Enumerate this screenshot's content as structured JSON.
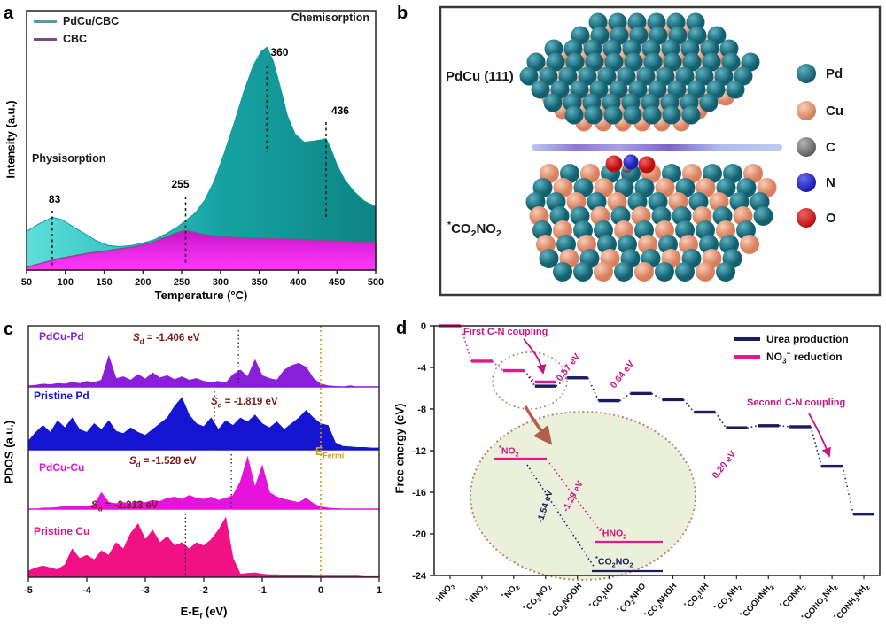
{
  "chart_data": [
    {
      "id": "a",
      "panel_label": "a",
      "type": "area",
      "xlabel": "Temperature (°C)",
      "ylabel": "Intensity (a.u.)",
      "xlim": [
        50,
        500
      ],
      "xticks": [
        50,
        100,
        150,
        200,
        250,
        300,
        350,
        400,
        450,
        500
      ],
      "legend": [
        {
          "label": "PdCu/CBC",
          "color": "#4f9ea0"
        },
        {
          "label": "CBC",
          "color": "#7a4d80"
        }
      ],
      "annotations": {
        "chemisorption": "Chemisorption",
        "physisorption": "Physisorption"
      },
      "peaks": [
        {
          "x": 83,
          "label": "83"
        },
        {
          "x": 255,
          "label": "255"
        },
        {
          "x": 360,
          "label": "360"
        },
        {
          "x": 436,
          "label": "436"
        }
      ],
      "series": [
        {
          "name": "PdCu/CBC",
          "fill_from": "#5ededa",
          "fill_to": "#0d8484",
          "points": [
            [
              50,
              0.165
            ],
            [
              65,
              0.195
            ],
            [
              83,
              0.225
            ],
            [
              95,
              0.215
            ],
            [
              110,
              0.185
            ],
            [
              125,
              0.155
            ],
            [
              140,
              0.125
            ],
            [
              155,
              0.105
            ],
            [
              170,
              0.1
            ],
            [
              185,
              0.105
            ],
            [
              200,
              0.115
            ],
            [
              215,
              0.13
            ],
            [
              230,
              0.155
            ],
            [
              245,
              0.185
            ],
            [
              255,
              0.21
            ],
            [
              268,
              0.245
            ],
            [
              280,
              0.3
            ],
            [
              292,
              0.38
            ],
            [
              305,
              0.5
            ],
            [
              318,
              0.63
            ],
            [
              330,
              0.76
            ],
            [
              342,
              0.87
            ],
            [
              352,
              0.93
            ],
            [
              360,
              0.95
            ],
            [
              368,
              0.89
            ],
            [
              377,
              0.78
            ],
            [
              386,
              0.66
            ],
            [
              396,
              0.58
            ],
            [
              408,
              0.545
            ],
            [
              420,
              0.55
            ],
            [
              430,
              0.555
            ],
            [
              436,
              0.56
            ],
            [
              442,
              0.52
            ],
            [
              450,
              0.45
            ],
            [
              460,
              0.385
            ],
            [
              472,
              0.335
            ],
            [
              485,
              0.295
            ],
            [
              500,
              0.27
            ]
          ]
        },
        {
          "name": "CBC",
          "fill_from": "#c913c9",
          "fill_to": "#ff3aff",
          "edge": "#8a4b8f",
          "points": [
            [
              50,
              0.012
            ],
            [
              70,
              0.03
            ],
            [
              90,
              0.048
            ],
            [
              110,
              0.06
            ],
            [
              130,
              0.072
            ],
            [
              150,
              0.08
            ],
            [
              170,
              0.09
            ],
            [
              190,
              0.1
            ],
            [
              210,
              0.115
            ],
            [
              230,
              0.14
            ],
            [
              245,
              0.16
            ],
            [
              255,
              0.168
            ],
            [
              265,
              0.162
            ],
            [
              280,
              0.15
            ],
            [
              300,
              0.142
            ],
            [
              320,
              0.138
            ],
            [
              340,
              0.136
            ],
            [
              360,
              0.134
            ],
            [
              380,
              0.132
            ],
            [
              400,
              0.13
            ],
            [
              420,
              0.127
            ],
            [
              440,
              0.124
            ],
            [
              460,
              0.122
            ],
            [
              480,
              0.12
            ],
            [
              500,
              0.118
            ]
          ]
        }
      ]
    },
    {
      "id": "c",
      "panel_label": "c",
      "type": "area",
      "subtype": "pdos-stack",
      "xlabel_segments": [
        {
          "t": "E-E"
        },
        {
          "sub": "f"
        },
        {
          "t": " (eV)"
        }
      ],
      "ylabel": "PDOS (a.u.)",
      "xlim": [
        -5,
        1
      ],
      "xticks": [
        -5,
        -4,
        -3,
        -2,
        -1,
        0,
        1
      ],
      "sd_sym": "S",
      "sd_sub": "d",
      "fermi_segments": [
        {
          "t": "E"
        },
        {
          "sub": "Fermi"
        }
      ],
      "fermi_color": "#cf9c12",
      "x_start": -5,
      "x_step": 0.125,
      "traces": [
        {
          "name": "PdCu-Pd",
          "color": "#8a1fd9",
          "sd_value": "= -1.406 eV",
          "band_center": -1.406,
          "values": [
            0.02,
            0.03,
            0.05,
            0.04,
            0.06,
            0.05,
            0.08,
            0.06,
            0.1,
            0.08,
            0.12,
            0.55,
            0.15,
            0.18,
            0.12,
            0.22,
            0.14,
            0.25,
            0.16,
            0.2,
            0.13,
            0.18,
            0.12,
            0.15,
            0.1,
            0.08,
            0.1,
            0.07,
            0.22,
            0.3,
            0.18,
            0.48,
            0.2,
            0.15,
            0.12,
            0.3,
            0.38,
            0.42,
            0.35,
            0.15,
            0.05,
            0.02,
            0.01,
            0,
            0.02,
            0,
            0,
            0,
            0
          ]
        },
        {
          "name": "Pristine Pd",
          "color": "#1414d2",
          "sd_value": "= -1.819 eV",
          "band_center": -1.819,
          "values": [
            0.15,
            0.3,
            0.42,
            0.3,
            0.5,
            0.38,
            0.55,
            0.35,
            0.3,
            0.45,
            0.35,
            0.5,
            0.32,
            0.28,
            0.38,
            0.3,
            0.25,
            0.35,
            0.45,
            0.55,
            0.75,
            0.9,
            0.6,
            0.45,
            0.4,
            0.55,
            0.35,
            0.5,
            0.42,
            0.55,
            0.48,
            0.6,
            0.45,
            0.38,
            0.48,
            0.35,
            0.45,
            0.55,
            0.68,
            0.55,
            0.45,
            0.42,
            0.12,
            0.06,
            0.05,
            0.04,
            0.04,
            0.03,
            0.03
          ]
        },
        {
          "name": "PdCu-Cu",
          "color": "#e613dc",
          "sd_value": "= -1.528 eV",
          "band_center": -1.528,
          "values": [
            0,
            0,
            0.02,
            0.02,
            0.03,
            0.05,
            0.04,
            0.06,
            0.05,
            0.08,
            0.3,
            0.12,
            0.1,
            0.12,
            0.1,
            0.14,
            0.12,
            0.16,
            0.14,
            0.2,
            0.22,
            0.18,
            0.25,
            0.2,
            0.18,
            0.22,
            0.16,
            0.2,
            0.25,
            0.5,
            0.95,
            0.4,
            0.8,
            0.3,
            0.22,
            0.18,
            0.15,
            0.12,
            0.2,
            0.1,
            0.04,
            0.02,
            0.01,
            0,
            0,
            0,
            0,
            0,
            0
          ]
        },
        {
          "name": "Pristine Cu",
          "color": "#f01285",
          "sd_value": "= -2.313 eV",
          "band_center": -2.313,
          "values": [
            0.1,
            0.15,
            0.18,
            0.15,
            0.12,
            0.2,
            0.45,
            0.3,
            0.35,
            0.28,
            0.42,
            0.35,
            0.55,
            0.45,
            0.7,
            0.85,
            0.6,
            0.75,
            0.55,
            0.65,
            0.5,
            0.55,
            0.45,
            0.55,
            0.5,
            0.6,
            0.75,
            0.95,
            0.3,
            0.05,
            0.06,
            0.07,
            0.05,
            0.04,
            0.04,
            0.03,
            0.03,
            0.03,
            0.03,
            0.02,
            0.02,
            0.02,
            0.02,
            0.02,
            0.02,
            0.02,
            0.01,
            0.01,
            0.01
          ]
        }
      ]
    },
    {
      "id": "d",
      "panel_label": "d",
      "type": "step",
      "ylabel": "Free energy (eV)",
      "ylim": [
        -24,
        0
      ],
      "yticks": [
        0,
        -4,
        -8,
        -12,
        -16,
        -20,
        -24
      ],
      "series_colors": {
        "urea": "#1b1b5f",
        "no3": "#e01a8c"
      },
      "legend": [
        {
          "segments": [
            {
              "t": "Urea production"
            }
          ],
          "color": "#1b1b5f"
        },
        {
          "segments": [
            {
              "t": "NO"
            },
            {
              "sub": "3"
            },
            {
              "sup": "−"
            },
            {
              "t": " reduction"
            }
          ],
          "color": "#e01a8c"
        }
      ],
      "steps": [
        {
          "segments": [
            {
              "t": "HNO"
            },
            {
              "sub": "3"
            }
          ],
          "series": "no3",
          "energy": 0
        },
        {
          "segments": [
            {
              "sup": "*"
            },
            {
              "t": "HNO"
            },
            {
              "sub": "3"
            }
          ],
          "series": "no3",
          "energy": -3.4
        },
        {
          "segments": [
            {
              "sup": "*"
            },
            {
              "t": "NO"
            },
            {
              "sub": "2"
            }
          ],
          "series": "no3",
          "energy": -4.3
        },
        {
          "segments": [
            {
              "sup": "*"
            },
            {
              "t": "CO"
            },
            {
              "sub": "2"
            },
            {
              "t": "NO"
            },
            {
              "sub": "2"
            }
          ],
          "series": "urea",
          "energy": -5.8,
          "alt_energy": -5.4
        },
        {
          "segments": [
            {
              "sup": "*"
            },
            {
              "t": "CO"
            },
            {
              "sub": "2"
            },
            {
              "t": "NOOH"
            }
          ],
          "series": "urea",
          "energy": -5.0
        },
        {
          "segments": [
            {
              "sup": "*"
            },
            {
              "t": "CO"
            },
            {
              "sub": "2"
            },
            {
              "t": "NO"
            }
          ],
          "series": "urea",
          "energy": -7.2
        },
        {
          "segments": [
            {
              "sup": "*"
            },
            {
              "t": "CO"
            },
            {
              "sub": "2"
            },
            {
              "t": "NHO"
            }
          ],
          "series": "urea",
          "energy": -6.5
        },
        {
          "segments": [
            {
              "sup": "*"
            },
            {
              "t": "CO"
            },
            {
              "sub": "2"
            },
            {
              "t": "NHOH"
            }
          ],
          "series": "urea",
          "energy": -7.1
        },
        {
          "segments": [
            {
              "sup": "*"
            },
            {
              "t": "CO"
            },
            {
              "sub": "2"
            },
            {
              "t": "NH"
            }
          ],
          "series": "urea",
          "energy": -8.3
        },
        {
          "segments": [
            {
              "sup": "*"
            },
            {
              "t": "CO"
            },
            {
              "sub": "2"
            },
            {
              "t": "NH"
            },
            {
              "sub": "2"
            }
          ],
          "series": "urea",
          "energy": -9.8
        },
        {
          "segments": [
            {
              "sup": "*"
            },
            {
              "t": "COOHNH"
            },
            {
              "sub": "2"
            }
          ],
          "series": "urea",
          "energy": -9.6
        },
        {
          "segments": [
            {
              "sup": "*"
            },
            {
              "t": "CONH"
            },
            {
              "sub": "2"
            }
          ],
          "series": "urea",
          "energy": -9.7
        },
        {
          "segments": [
            {
              "sup": "*"
            },
            {
              "t": "CONO"
            },
            {
              "sub": "2"
            },
            {
              "t": "NH"
            },
            {
              "sub": "2"
            }
          ],
          "series": "urea",
          "energy": -13.5
        },
        {
          "segments": [
            {
              "sup": "*"
            },
            {
              "t": "CONH"
            },
            {
              "sub": "2"
            },
            {
              "t": "NH"
            },
            {
              "sub": "2"
            }
          ],
          "series": "urea",
          "energy": -18.1
        }
      ],
      "annotations": {
        "first_coupling": "First C-N coupling",
        "second_coupling": "Second C-N coupling",
        "barrier1": "0.57 eV",
        "barrier2": "0.64 eV",
        "barrier3": "0.20 eV"
      },
      "inset": {
        "no2_segments": [
          {
            "sup": "*"
          },
          {
            "t": "NO"
          },
          {
            "sub": "2"
          }
        ],
        "hno2_segments": [
          {
            "sup": "*"
          },
          {
            "t": "HNO"
          },
          {
            "sub": "2"
          }
        ],
        "co2no2_segments": [
          {
            "sup": "*"
          },
          {
            "t": "CO"
          },
          {
            "sub": "2"
          },
          {
            "t": "NO"
          },
          {
            "sub": "2"
          }
        ],
        "e_no3": "-1.29 eV",
        "e_urea": "-1.54 eV",
        "fill": "#eaf0da",
        "border": "#bd8070"
      }
    }
  ],
  "panel_b": {
    "panel_label": "b",
    "label_top": "PdCu (111)",
    "label_bottom_segments": [
      {
        "sup": "*"
      },
      {
        "t": "CO"
      },
      {
        "sub": "2"
      },
      {
        "t": "NO"
      },
      {
        "sub": "2"
      }
    ],
    "legend": [
      {
        "label": "Pd",
        "color_light": "#5fb3c2",
        "color_dark": "#0e5564"
      },
      {
        "label": "Cu",
        "color_light": "#f8cdb6",
        "color_dark": "#cf7a55"
      },
      {
        "label": "C",
        "color_light": "#b5b5b5",
        "color_dark": "#5a5a5a"
      },
      {
        "label": "N",
        "color_light": "#6a6af0",
        "color_dark": "#1515a8"
      },
      {
        "label": "O",
        "color_light": "#f56060",
        "color_dark": "#b50d0d"
      }
    ]
  }
}
